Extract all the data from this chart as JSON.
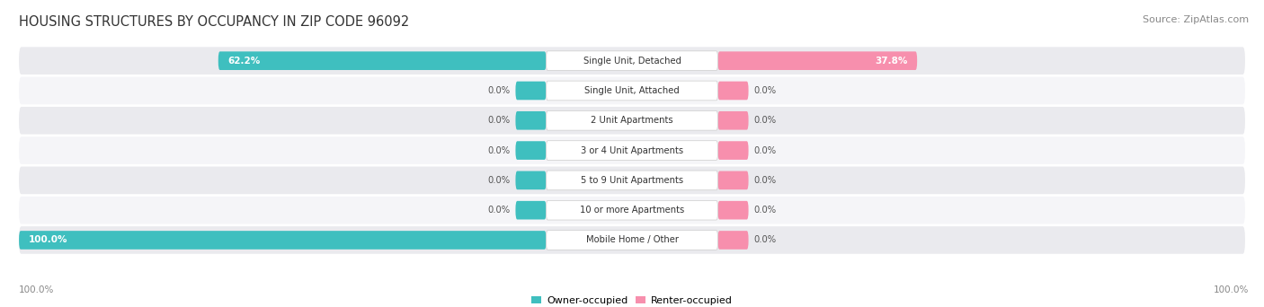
{
  "title": "HOUSING STRUCTURES BY OCCUPANCY IN ZIP CODE 96092",
  "source": "Source: ZipAtlas.com",
  "categories": [
    "Single Unit, Detached",
    "Single Unit, Attached",
    "2 Unit Apartments",
    "3 or 4 Unit Apartments",
    "5 to 9 Unit Apartments",
    "10 or more Apartments",
    "Mobile Home / Other"
  ],
  "owner_values": [
    62.2,
    0.0,
    0.0,
    0.0,
    0.0,
    0.0,
    100.0
  ],
  "renter_values": [
    37.8,
    0.0,
    0.0,
    0.0,
    0.0,
    0.0,
    0.0
  ],
  "owner_color": "#3FBFBF",
  "renter_color": "#F78FAD",
  "row_bg_color_odd": "#EAEAEE",
  "row_bg_color_even": "#F5F5F8",
  "title_color": "#333333",
  "value_color_on_bar": "#FFFFFF",
  "value_color_off_bar": "#555555",
  "axis_label_color": "#888888",
  "stub_value": 5.0,
  "figsize": [
    14.06,
    3.42
  ],
  "dpi": 100
}
